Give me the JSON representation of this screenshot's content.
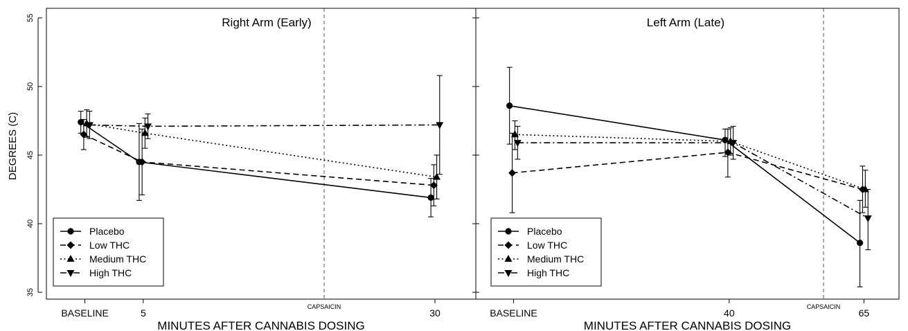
{
  "chart_data": {
    "type": "line",
    "ylabel": "DEGREES (C)",
    "yticks": [
      "35",
      "40",
      "45",
      "50",
      "55"
    ],
    "ylim": [
      34.5,
      55.7
    ],
    "legend": {
      "placement": "bottom-left",
      "entries": [
        "Placebo",
        "Low THC",
        "Medium THC",
        "High THC"
      ]
    },
    "series_style": [
      {
        "name": "Placebo",
        "dash": "solid",
        "marker": "circle"
      },
      {
        "name": "Low THC",
        "dash": "dashed",
        "marker": "diamond"
      },
      {
        "name": "Medium THC",
        "dash": "dotted",
        "marker": "triangle-up"
      },
      {
        "name": "High THC",
        "dash": "dashdot",
        "marker": "triangle-down"
      }
    ],
    "panels": [
      {
        "title": "Right Arm (Early)",
        "xlabel": "MINUTES AFTER CANNABIS DOSING",
        "xlim": [
          -3.3,
          33.5
        ],
        "ticks": [
          {
            "x": 0,
            "label": "BASELINE"
          },
          {
            "x": 5,
            "label": "5"
          },
          {
            "x": 30,
            "label": "30"
          }
        ],
        "capsaicin": {
          "x": 20.5,
          "label": "CAPSAICIN"
        },
        "series": [
          {
            "name": "Placebo",
            "offset": -0.35,
            "x": [
              0,
              5,
              30
            ],
            "y": [
              47.4,
              44.5,
              41.9
            ],
            "err_low": [
              46.6,
              41.7,
              40.5
            ],
            "err_high": [
              48.2,
              47.3,
              43.3
            ]
          },
          {
            "name": "Low THC",
            "offset": -0.1,
            "x": [
              0,
              5,
              30
            ],
            "y": [
              46.5,
              44.5,
              42.8
            ],
            "err_low": [
              45.4,
              42.1,
              41.3
            ],
            "err_high": [
              47.6,
              46.9,
              44.3
            ]
          },
          {
            "name": "Medium THC",
            "offset": 0.15,
            "x": [
              0,
              5,
              30
            ],
            "y": [
              47.3,
              46.6,
              43.4
            ],
            "err_low": [
              46.3,
              45.5,
              41.8
            ],
            "err_high": [
              48.3,
              47.7,
              45.0
            ]
          },
          {
            "name": "High THC",
            "offset": 0.4,
            "x": [
              0,
              5,
              30
            ],
            "y": [
              47.2,
              47.1,
              47.2
            ],
            "err_low": [
              46.2,
              46.2,
              43.6
            ],
            "err_high": [
              48.2,
              48.0,
              50.8
            ]
          }
        ]
      },
      {
        "title": "Left Arm (Late)",
        "xlabel": "MINUTES AFTER CANNABIS DOSING",
        "xlim": [
          -7.0,
          71.5
        ],
        "ticks": [
          {
            "x": 0,
            "label": "BASELINE"
          },
          {
            "x": 40,
            "label": "40"
          },
          {
            "x": 65,
            "label": "65"
          }
        ],
        "capsaicin": {
          "x": 57.5,
          "label": "CAPSAICIN"
        },
        "series": [
          {
            "name": "Placebo",
            "offset": -0.75,
            "x": [
              0,
              40,
              65
            ],
            "y": [
              48.6,
              46.1,
              38.6
            ],
            "err_low": [
              45.8,
              44.9,
              35.4
            ],
            "err_high": [
              51.4,
              46.9,
              41.7
            ]
          },
          {
            "name": "Low THC",
            "offset": -0.25,
            "x": [
              0,
              40,
              65
            ],
            "y": [
              43.7,
              45.2,
              42.5
            ],
            "err_low": [
              40.8,
              43.4,
              40.8
            ],
            "err_high": [
              46.6,
              46.9,
              44.2
            ]
          },
          {
            "name": "Medium THC",
            "offset": 0.25,
            "x": [
              0,
              40,
              65
            ],
            "y": [
              46.5,
              46.0,
              42.5
            ],
            "err_low": [
              45.4,
              45.0,
              41.2
            ],
            "err_high": [
              47.5,
              47.0,
              43.9
            ]
          },
          {
            "name": "High THC",
            "offset": 0.75,
            "x": [
              0,
              40,
              65
            ],
            "y": [
              45.9,
              45.9,
              40.4
            ],
            "err_low": [
              44.7,
              44.7,
              38.1
            ],
            "err_high": [
              47.1,
              47.1,
              42.5
            ]
          }
        ]
      }
    ]
  }
}
